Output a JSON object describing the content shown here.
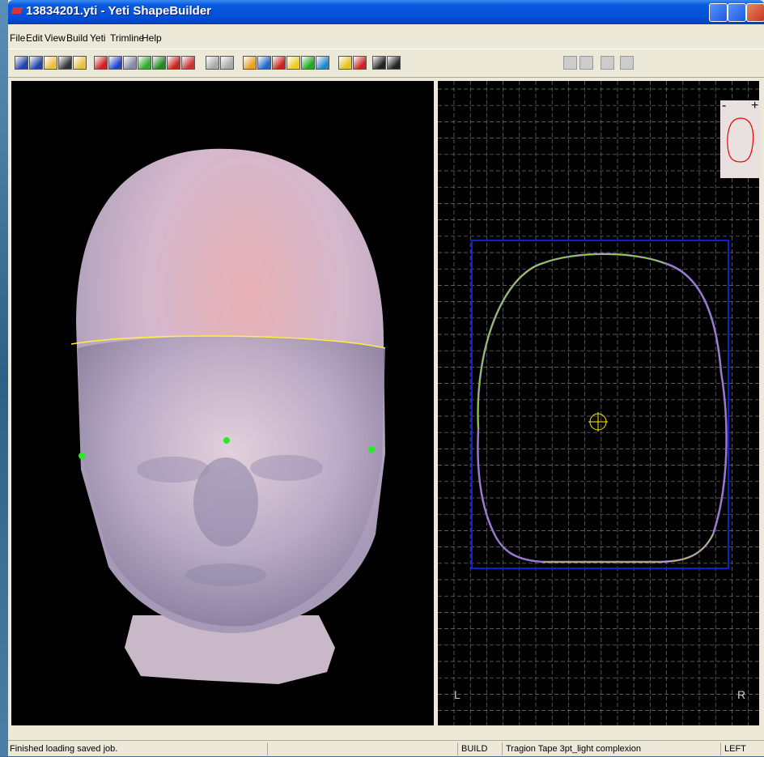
{
  "window": {
    "title": "13834201.yti - Yeti ShapeBuilder"
  },
  "menu": [
    "File",
    "Edit",
    "View",
    "Build",
    "Yeti",
    "Trimline",
    "Help"
  ],
  "top_view": {
    "left_label": "L",
    "right_label": "R",
    "zoom_out": "-",
    "zoom_in": "+"
  },
  "status_bar": {
    "message": "Finished loading saved job.",
    "mode": "BUILD",
    "tape": "Tragion Tape 3pt_light complexion",
    "side": "LEFT"
  }
}
